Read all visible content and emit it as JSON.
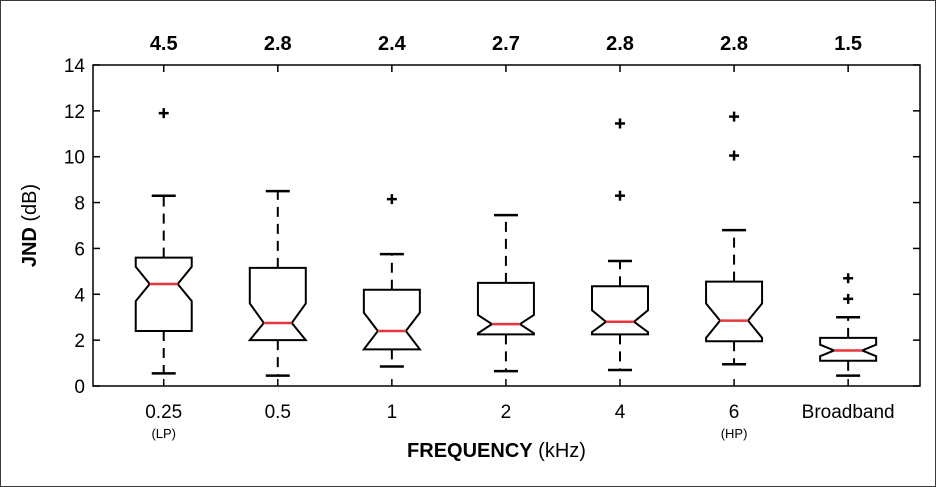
{
  "chart_data": {
    "type": "boxplot",
    "title": "",
    "xlabel": {
      "bold": "FREQUENCY",
      "rest": " (kHz)"
    },
    "ylabel": {
      "bold": "JND",
      "rest": " (dB)"
    },
    "ylim": [
      0,
      14
    ],
    "yticks": [
      0,
      2,
      4,
      6,
      8,
      10,
      12,
      14
    ],
    "grid": false,
    "notched": true,
    "categories": [
      {
        "label": "0.25",
        "sublabel": "(LP)",
        "median_label": "4.5",
        "median": 4.45,
        "q1": 2.4,
        "q3": 5.6,
        "notch_low": 3.7,
        "notch_high": 5.2,
        "whisker_low": 0.55,
        "whisker_high": 8.3,
        "outliers": [
          11.9
        ]
      },
      {
        "label": "0.5",
        "sublabel": "",
        "median_label": "2.8",
        "median": 2.75,
        "q1": 2.0,
        "q3": 5.15,
        "notch_low": 2.0,
        "notch_high": 3.6,
        "whisker_low": 0.45,
        "whisker_high": 8.5,
        "outliers": []
      },
      {
        "label": "1",
        "sublabel": "",
        "median_label": "2.4",
        "median": 2.4,
        "q1": 1.6,
        "q3": 4.2,
        "notch_low": 1.6,
        "notch_high": 3.2,
        "whisker_low": 0.85,
        "whisker_high": 5.75,
        "outliers": [
          8.15
        ]
      },
      {
        "label": "2",
        "sublabel": "",
        "median_label": "2.7",
        "median": 2.7,
        "q1": 2.25,
        "q3": 4.5,
        "notch_low": 2.3,
        "notch_high": 3.1,
        "whisker_low": 0.65,
        "whisker_high": 7.45,
        "outliers": []
      },
      {
        "label": "4",
        "sublabel": "",
        "median_label": "2.8",
        "median": 2.8,
        "q1": 2.25,
        "q3": 4.35,
        "notch_low": 2.35,
        "notch_high": 3.3,
        "whisker_low": 0.7,
        "whisker_high": 5.45,
        "outliers": [
          8.3,
          11.45
        ]
      },
      {
        "label": "6",
        "sublabel": "(HP)",
        "median_label": "2.8",
        "median": 2.85,
        "q1": 1.95,
        "q3": 4.55,
        "notch_low": 2.1,
        "notch_high": 3.6,
        "whisker_low": 0.95,
        "whisker_high": 6.8,
        "outliers": [
          10.05,
          11.75
        ]
      },
      {
        "label": "Broadband",
        "sublabel": "",
        "median_label": "1.5",
        "median": 1.55,
        "q1": 1.1,
        "q3": 2.1,
        "notch_low": 1.3,
        "notch_high": 1.8,
        "whisker_low": 0.45,
        "whisker_high": 3.0,
        "outliers": [
          3.8,
          4.7
        ]
      }
    ],
    "colors": {
      "box": "#000000",
      "median": "#e8363d",
      "outlier": "#000000"
    }
  }
}
